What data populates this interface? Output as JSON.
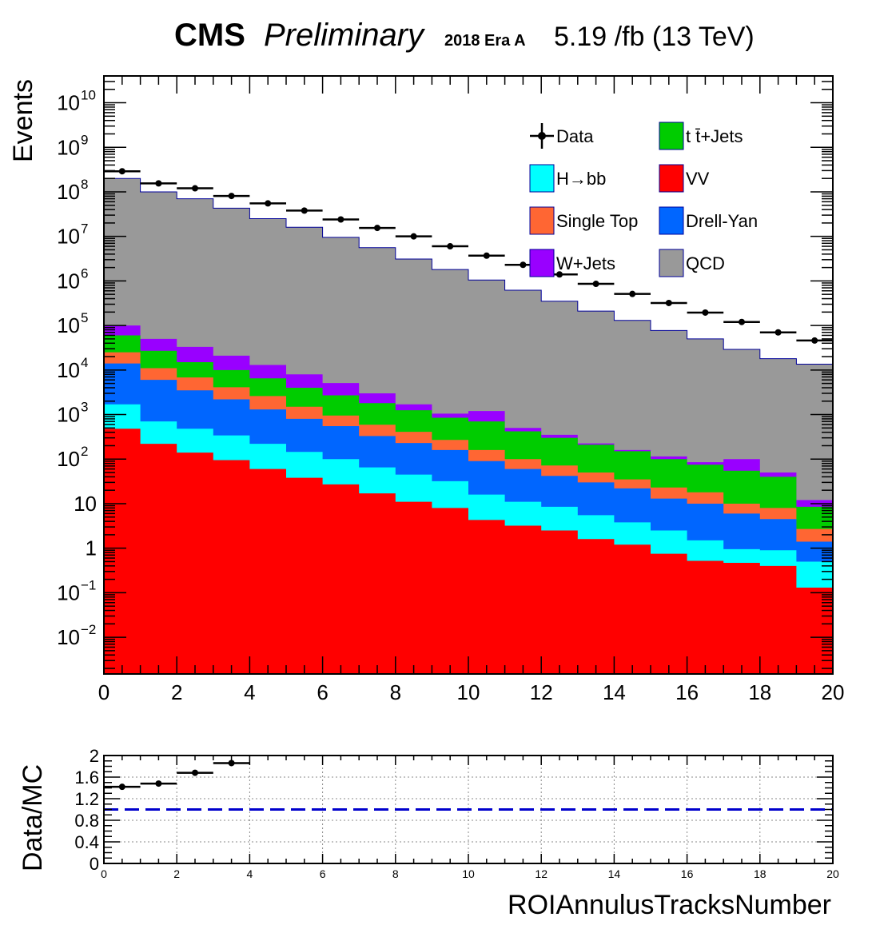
{
  "header": {
    "experiment": "CMS",
    "status": "Preliminary",
    "era": "2018 Era A",
    "lumi": "5.19 /fb (13 TeV)"
  },
  "chart_data": [
    {
      "type": "area",
      "stacked": true,
      "log_y": true,
      "xlabel": "ROIAnnulusTracksNumber",
      "ylabel": "Events",
      "xlim": [
        0,
        20
      ],
      "ylim": [
        0.0015,
        40000000000
      ],
      "bin_edges": [
        0,
        1,
        2,
        3,
        4,
        5,
        6,
        7,
        8,
        9,
        10,
        11,
        12,
        13,
        14,
        15,
        16,
        17,
        18,
        19,
        20
      ],
      "x_ticks": [
        "0",
        "2",
        "4",
        "6",
        "8",
        "10",
        "12",
        "14",
        "16",
        "18",
        "20"
      ],
      "y_ticks": [
        {
          "value": 0.01,
          "base": "10",
          "exp": "−2"
        },
        {
          "value": 0.1,
          "base": "10",
          "exp": "−1"
        },
        {
          "value": 1,
          "base": "1",
          "exp": ""
        },
        {
          "value": 10,
          "base": "10",
          "exp": ""
        },
        {
          "value": 100,
          "base": "10",
          "exp": "2"
        },
        {
          "value": 1000,
          "base": "10",
          "exp": "3"
        },
        {
          "value": 10000,
          "base": "10",
          "exp": "4"
        },
        {
          "value": 100000,
          "base": "10",
          "exp": "5"
        },
        {
          "value": 1000000,
          "base": "10",
          "exp": "6"
        },
        {
          "value": 10000000,
          "base": "10",
          "exp": "7"
        },
        {
          "value": 100000000,
          "base": "10",
          "exp": "8"
        },
        {
          "value": 1000000000,
          "base": "10",
          "exp": "9"
        },
        {
          "value": 10000000000,
          "base": "10",
          "exp": "10"
        }
      ],
      "stack_order_bottom_to_top": [
        "VV",
        "H→bb",
        "Drell-Yan",
        "Single Top",
        "t t̄+Jets",
        "W+Jets",
        "QCD"
      ],
      "cumulative_stack_tops": {
        "VV": [
          480,
          220,
          140,
          95,
          60,
          38,
          27,
          17,
          11,
          8,
          4.3,
          3.2,
          2.5,
          1.6,
          1.2,
          0.75,
          0.52,
          0.47,
          0.4,
          0.13
        ],
        "H→bb": [
          1700,
          700,
          480,
          340,
          220,
          145,
          100,
          65,
          45,
          32,
          16,
          11,
          8.5,
          5.5,
          3.8,
          2.5,
          1.5,
          0.95,
          0.9,
          0.5
        ],
        "Drell-Yan": [
          14000,
          6000,
          3500,
          2200,
          1300,
          800,
          550,
          330,
          230,
          160,
          90,
          60,
          42,
          30,
          22,
          13,
          10,
          6,
          4.5,
          1.4
        ],
        "Single Top": [
          25000,
          11000,
          6800,
          4100,
          2600,
          1500,
          950,
          590,
          410,
          270,
          160,
          100,
          72,
          50,
          35,
          23,
          18,
          10,
          8,
          2.7
        ],
        "t t̄+Jets": [
          60000,
          27000,
          15000,
          10000,
          6500,
          4000,
          2700,
          1800,
          1250,
          850,
          700,
          420,
          300,
          210,
          150,
          100,
          75,
          55,
          40,
          8.5
        ],
        "W+Jets": [
          100000,
          50000,
          33000,
          21000,
          13000,
          8000,
          5100,
          3000,
          1700,
          1050,
          1200,
          500,
          350,
          225,
          160,
          115,
          85,
          100,
          50,
          12
        ],
        "QCD": [
          200000000,
          100000000,
          70000000,
          43000000,
          25000000,
          16000000,
          9500000,
          5600000,
          3100000,
          1800000,
          1050000,
          620000,
          350000,
          210000,
          130000,
          77000,
          50000,
          29000,
          18000,
          13500
        ]
      },
      "data_points": [
        290000000,
        155000000,
        120000000,
        81000000,
        55000000,
        38000000,
        24000000,
        15500000,
        10000000,
        6000000,
        3700000,
        2300000,
        1400000,
        860000,
        510000,
        320000,
        195000,
        120000,
        70000,
        46000
      ],
      "series": [
        {
          "name": "Data",
          "style": "marker",
          "color": "#000000"
        },
        {
          "name": "t t̄+Jets",
          "color": "#00cc00"
        },
        {
          "name": "H→bb",
          "color": "#00ffff"
        },
        {
          "name": "VV",
          "color": "#ff0000"
        },
        {
          "name": "Single Top",
          "color": "#ff6633"
        },
        {
          "name": "Drell-Yan",
          "color": "#0066ff"
        },
        {
          "name": "W+Jets",
          "color": "#9900ff"
        },
        {
          "name": "QCD",
          "color": "#999999"
        }
      ],
      "legend_position": "top-right"
    },
    {
      "type": "scatter",
      "ylabel": "Data/MC",
      "xlabel": "",
      "xlim": [
        0,
        20
      ],
      "ylim": [
        0,
        2
      ],
      "x_ticks": [
        "0",
        "2",
        "4",
        "6",
        "8",
        "10",
        "12",
        "14",
        "16",
        "18",
        "20"
      ],
      "y_ticks": [
        "0",
        "0.4",
        "0.8",
        "1.2",
        "1.6",
        "2"
      ],
      "grid": true,
      "reference_line": {
        "y": 1.0,
        "style": "dashed",
        "color": "#0000cc"
      },
      "x": [
        0.5,
        1.5,
        2.5,
        3.5
      ],
      "y": [
        1.42,
        1.48,
        1.68,
        1.86
      ]
    }
  ]
}
